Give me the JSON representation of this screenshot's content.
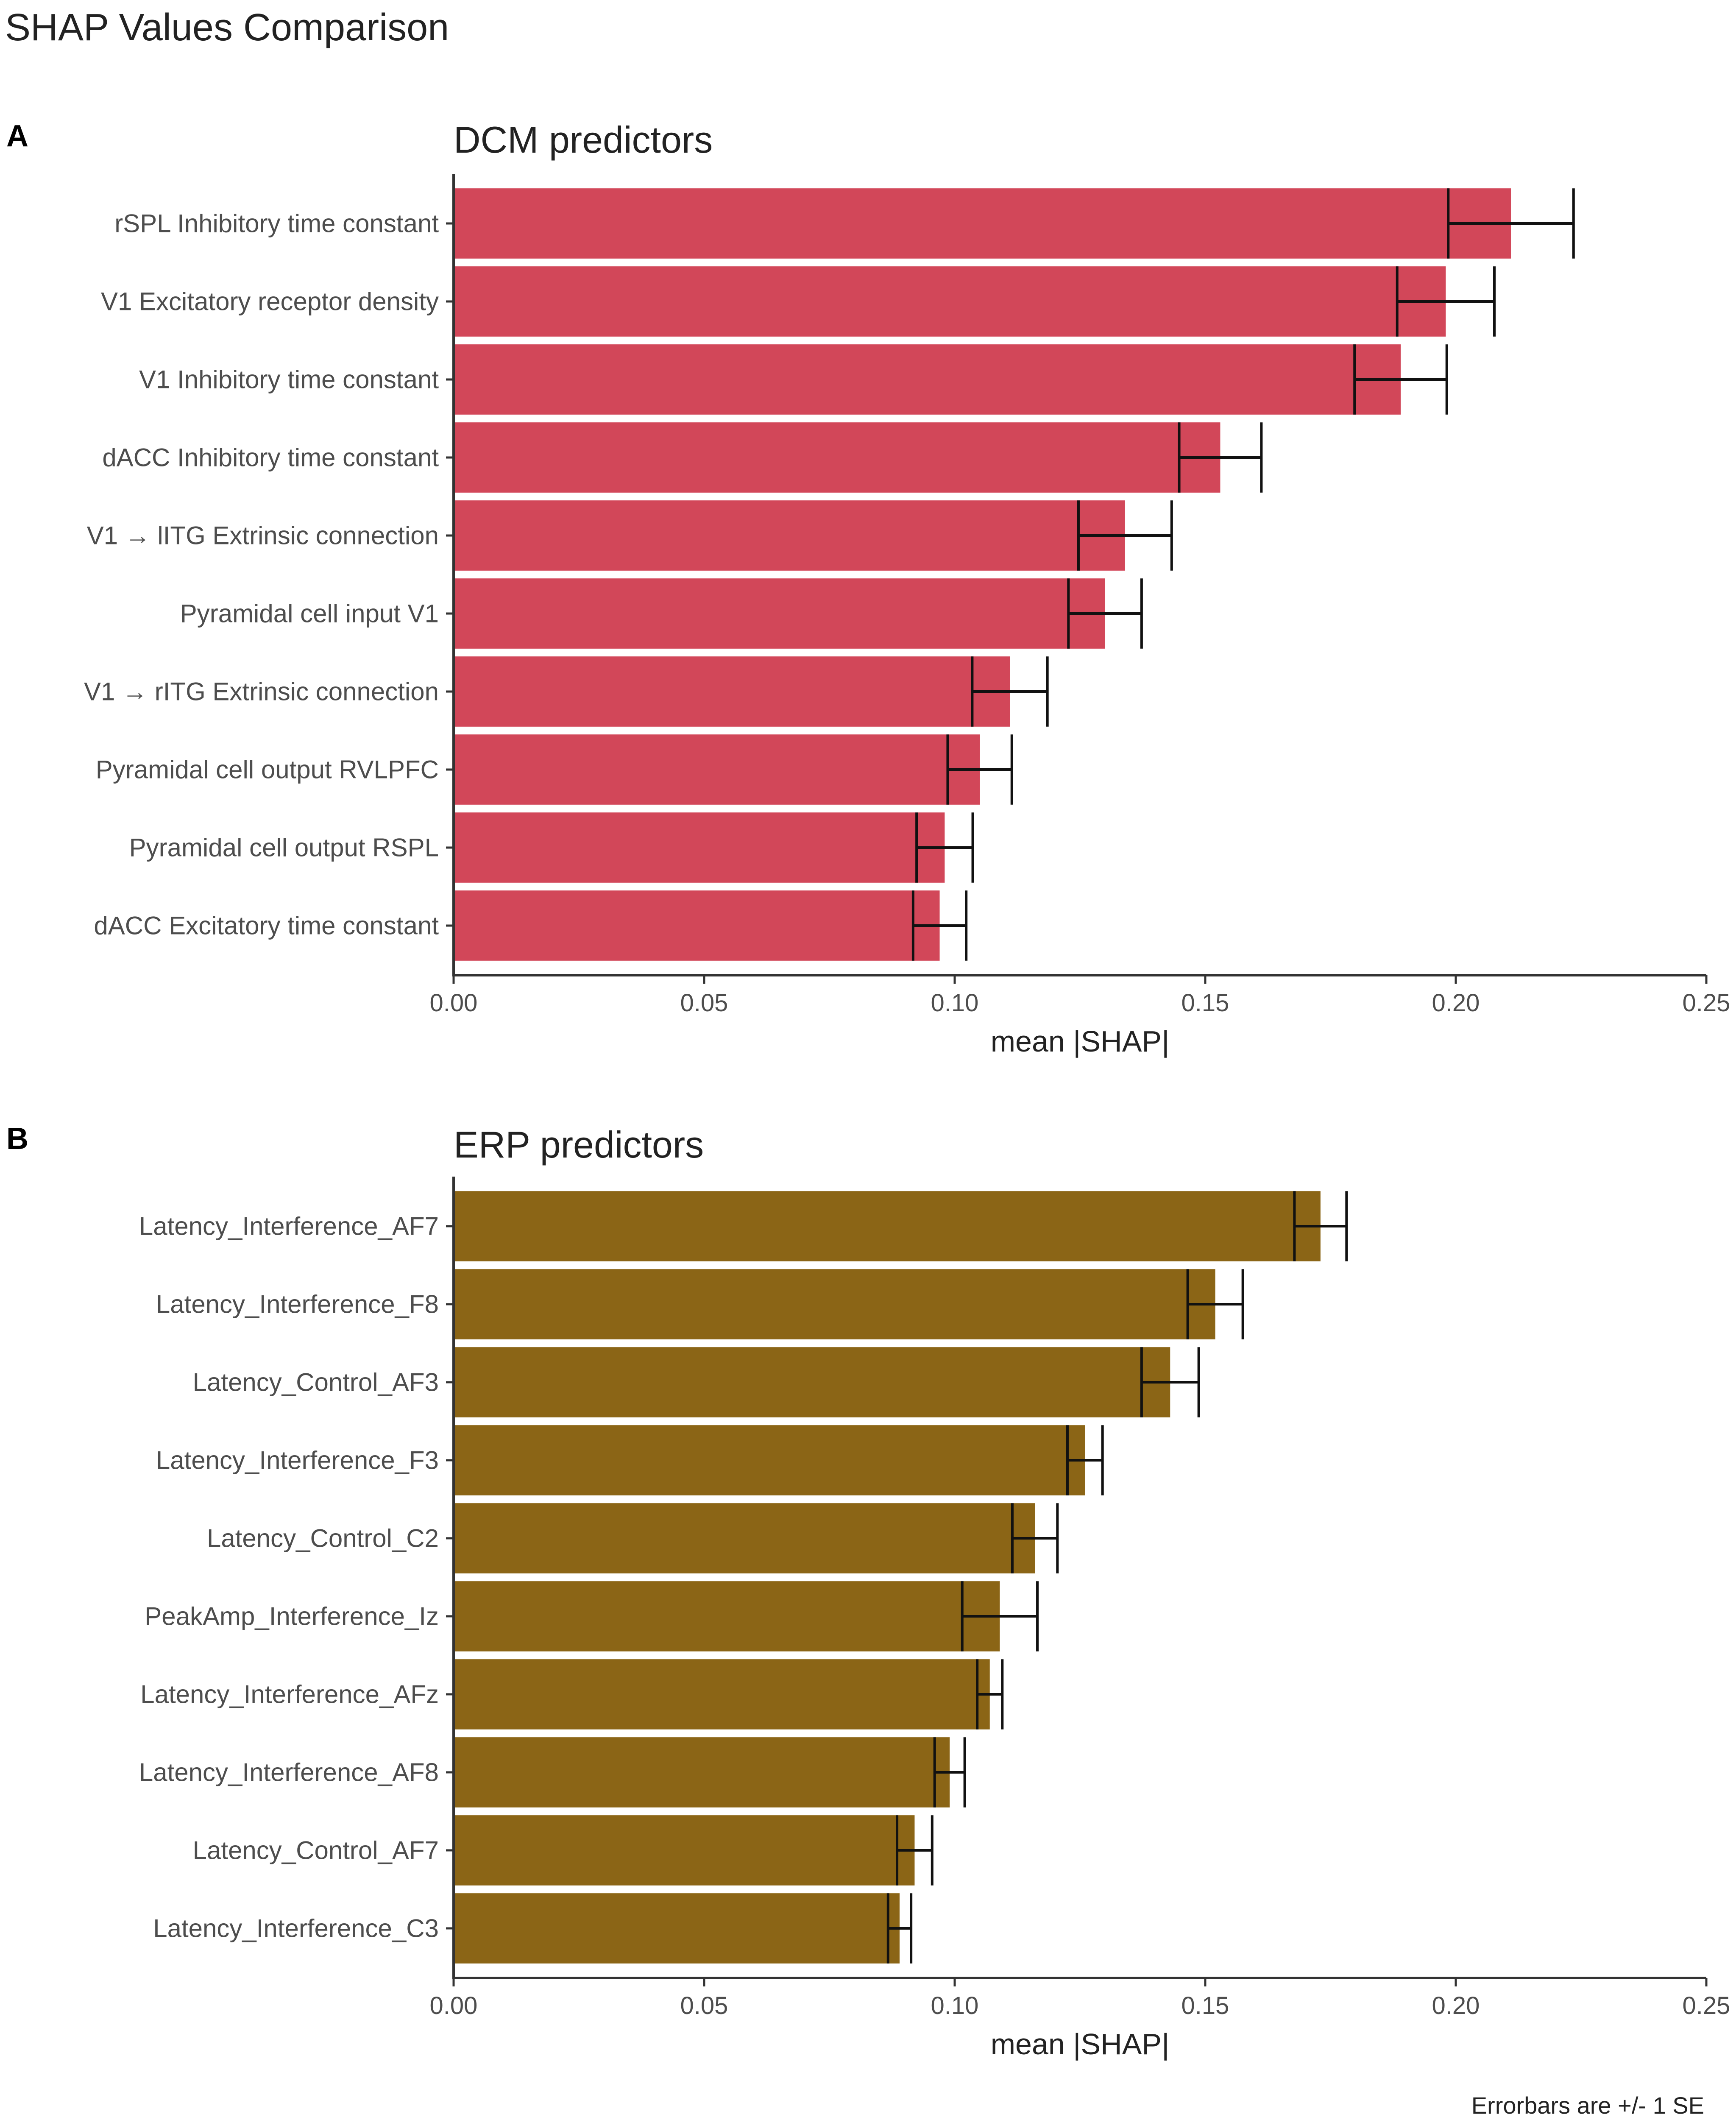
{
  "figure_title": "SHAP Values Comparison",
  "caption": "Errorbars are +/- 1 SE",
  "chart_data": [
    {
      "type": "bar",
      "orientation": "horizontal",
      "panel_label": "A",
      "title": "DCM predictors",
      "xlabel": "mean |SHAP|",
      "ylabel": "",
      "xlim": [
        0,
        0.25
      ],
      "xticks": [
        "0.00",
        "0.05",
        "0.10",
        "0.15",
        "0.20",
        "0.25"
      ],
      "xtick_values": [
        0,
        0.05,
        0.1,
        0.15,
        0.2,
        0.25
      ],
      "color": "#d24759",
      "categories": [
        "rSPL Inhibitory time constant",
        "V1 Excitatory receptor density",
        "V1 Inhibitory time constant",
        "dACC Inhibitory time constant",
        "V1 → lITG Extrinsic connection",
        "Pyramidal cell input V1",
        "V1 → rITG Extrinsic connection",
        "Pyramidal cell output RVLPFC",
        "Pyramidal cell output RSPL",
        "dACC Excitatory time constant"
      ],
      "values": [
        0.211,
        0.198,
        0.189,
        0.153,
        0.134,
        0.13,
        0.111,
        0.105,
        0.098,
        0.097
      ],
      "errors": [
        0.0125,
        0.0097,
        0.0092,
        0.0082,
        0.0093,
        0.0073,
        0.0075,
        0.0064,
        0.0056,
        0.0053
      ]
    },
    {
      "type": "bar",
      "orientation": "horizontal",
      "panel_label": "B",
      "title": "ERP predictors",
      "xlabel": "mean |SHAP|",
      "ylabel": "",
      "xlim": [
        0,
        0.25
      ],
      "xticks": [
        "0.00",
        "0.05",
        "0.10",
        "0.15",
        "0.20",
        "0.25"
      ],
      "xtick_values": [
        0,
        0.05,
        0.1,
        0.15,
        0.2,
        0.25
      ],
      "color": "#8b6516",
      "categories": [
        "Latency_Interference_AF7",
        "Latency_Interference_F8",
        "Latency_Control_AF3",
        "Latency_Interference_F3",
        "Latency_Control_C2",
        "PeakAmp_Interference_Iz",
        "Latency_Interference_AFz",
        "Latency_Interference_AF8",
        "Latency_Control_AF7",
        "Latency_Interference_C3"
      ],
      "values": [
        0.173,
        0.152,
        0.143,
        0.126,
        0.116,
        0.109,
        0.107,
        0.099,
        0.092,
        0.089
      ],
      "errors": [
        0.0052,
        0.0055,
        0.0057,
        0.0035,
        0.0045,
        0.0075,
        0.0025,
        0.003,
        0.0035,
        0.0023
      ]
    }
  ]
}
